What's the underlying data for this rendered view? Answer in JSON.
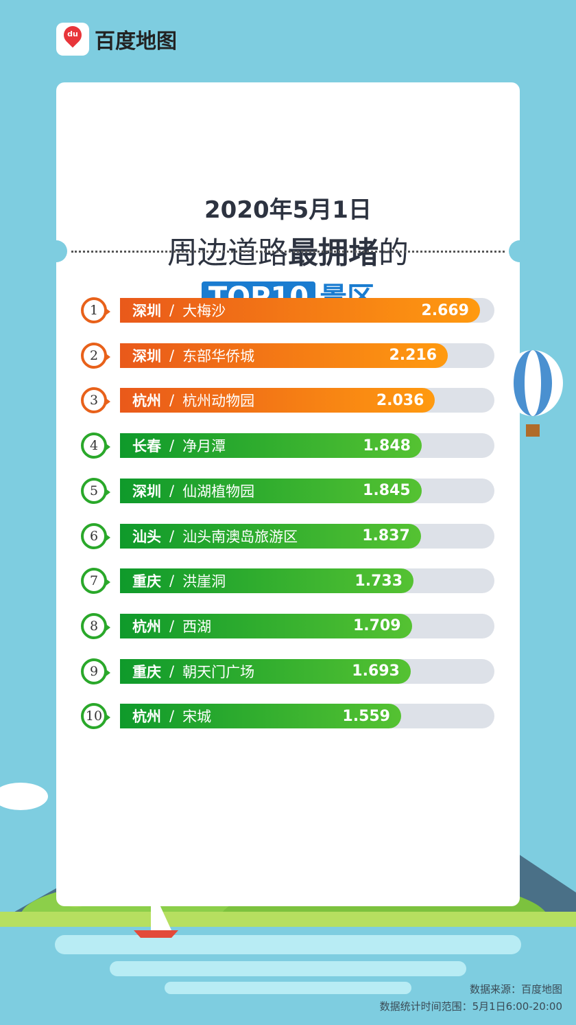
{
  "brand": {
    "logo_mark": "du",
    "name": "百度地图"
  },
  "header": {
    "date": "2020年5月1日",
    "line2_pre": "周边道路",
    "line2_bold": "最拥堵",
    "line2_post": "的",
    "badge": "TOP10",
    "suffix": "景区"
  },
  "colors": {
    "top3": "#ff8a10",
    "rest": "#2aa82a",
    "title_blue": "#1a7cd0",
    "background": "#7ecde0"
  },
  "chart_data": {
    "type": "bar",
    "orientation": "horizontal",
    "categories": [
      "深圳 / 大梅沙",
      "深圳 / 东部华侨城",
      "杭州 / 杭州动物园",
      "长春 / 净月潭",
      "深圳 / 仙湖植物园",
      "汕头 / 汕头南澳岛旅游区",
      "重庆 / 洪崖洞",
      "杭州 / 西湖",
      "重庆 / 朝天门广场",
      "杭州 / 宋城"
    ],
    "rows": [
      {
        "rank": "1",
        "city": "深圳",
        "place": "大梅沙",
        "value": 2.669,
        "label": "2.669"
      },
      {
        "rank": "2",
        "city": "深圳",
        "place": "东部华侨城",
        "value": 2.216,
        "label": "2.216"
      },
      {
        "rank": "3",
        "city": "杭州",
        "place": "杭州动物园",
        "value": 2.036,
        "label": "2.036"
      },
      {
        "rank": "4",
        "city": "长春",
        "place": "净月潭",
        "value": 1.848,
        "label": "1.848"
      },
      {
        "rank": "5",
        "city": "深圳",
        "place": "仙湖植物园",
        "value": 1.845,
        "label": "1.845"
      },
      {
        "rank": "6",
        "city": "汕头",
        "place": "汕头南澳岛旅游区",
        "value": 1.837,
        "label": "1.837"
      },
      {
        "rank": "7",
        "city": "重庆",
        "place": "洪崖洞",
        "value": 1.733,
        "label": "1.733"
      },
      {
        "rank": "8",
        "city": "杭州",
        "place": "西湖",
        "value": 1.709,
        "label": "1.709"
      },
      {
        "rank": "9",
        "city": "重庆",
        "place": "朝天门广场",
        "value": 1.693,
        "label": "1.693"
      },
      {
        "rank": "10",
        "city": "杭州",
        "place": "宋城",
        "value": 1.559,
        "label": "1.559"
      }
    ],
    "separator": "/",
    "title": "2020年5月1日 周边道路最拥堵的TOP10景区"
  },
  "footer": {
    "source": "数据来源：百度地图",
    "range": "数据统计时间范围：5月1日6:00-20:00"
  }
}
